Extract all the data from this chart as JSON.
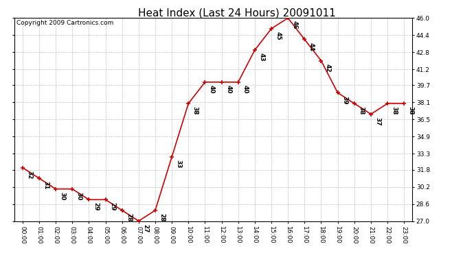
{
  "title": "Heat Index (Last 24 Hours) 20091011",
  "copyright": "Copyright 2009 Cartronics.com",
  "hours": [
    "00:00",
    "01:00",
    "02:00",
    "03:00",
    "04:00",
    "05:00",
    "06:00",
    "07:00",
    "08:00",
    "09:00",
    "10:00",
    "11:00",
    "12:00",
    "13:00",
    "14:00",
    "15:00",
    "16:00",
    "17:00",
    "18:00",
    "19:00",
    "20:00",
    "21:00",
    "22:00",
    "23:00"
  ],
  "values": [
    32,
    31,
    30,
    30,
    29,
    29,
    28,
    27,
    28,
    33,
    38,
    40,
    40,
    40,
    43,
    45,
    46,
    44,
    42,
    39,
    38,
    37,
    38,
    38
  ],
  "yticks": [
    27.0,
    28.6,
    30.2,
    31.8,
    33.3,
    34.9,
    36.5,
    38.1,
    39.7,
    41.2,
    42.8,
    44.4,
    46.0
  ],
  "ylim": [
    27.0,
    46.0
  ],
  "line_color": "#cc0000",
  "marker_color": "#cc0000",
  "grid_color": "#c0c0c0",
  "background_color": "#ffffff",
  "title_fontsize": 11,
  "label_fontsize": 6.5,
  "tick_fontsize": 6.5,
  "copyright_fontsize": 6.5
}
